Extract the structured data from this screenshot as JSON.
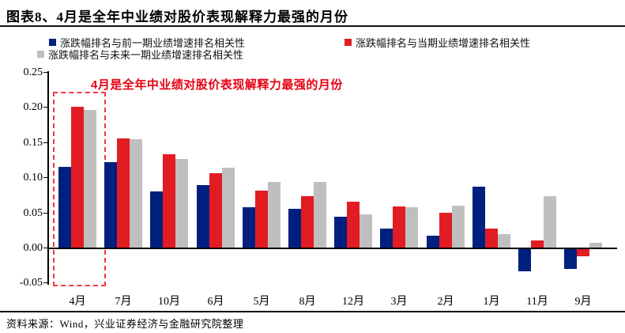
{
  "page": {
    "title": "图表8、4月是全年中业绩对股价表现解释力最强的月份",
    "source_note": "资料来源：Wind，兴业证券经济与金融研究院整理"
  },
  "colors": {
    "series_prev_blue": "#00207f",
    "series_curr_red": "#e11c23",
    "series_next_gray": "#bfbfbf",
    "annotation_red": "#e60012",
    "highlight_box_red": "#f5383e",
    "axis": "#000000"
  },
  "chart_data": {
    "type": "bar",
    "title": "图表8、4月是全年中业绩对股价表现解释力最强的月份",
    "xlabel": "",
    "ylabel": "",
    "categories": [
      "4月",
      "7月",
      "10月",
      "6月",
      "5月",
      "8月",
      "12月",
      "3月",
      "2月",
      "1月",
      "11月",
      "9月"
    ],
    "series": [
      {
        "name": "涨跌幅排名与前一期业绩增速排名相关性",
        "color": "#00207f",
        "values": [
          0.115,
          0.122,
          0.08,
          0.089,
          0.057,
          0.055,
          0.044,
          0.027,
          0.017,
          0.087,
          -0.031,
          -0.028
        ]
      },
      {
        "name": "涨跌幅排名与当期业绩增速排名相关性",
        "color": "#e11c23",
        "values": [
          0.2,
          0.155,
          0.133,
          0.106,
          0.081,
          0.073,
          0.065,
          0.059,
          0.049,
          0.027,
          0.01,
          -0.01
        ]
      },
      {
        "name": "涨跌幅排名与未来一期业绩增速排名相关性",
        "color": "#bfbfbf",
        "values": [
          0.196,
          0.154,
          0.126,
          0.114,
          0.094,
          0.093,
          0.047,
          0.057,
          0.06,
          0.019,
          0.073,
          0.007
        ]
      }
    ],
    "ylim": [
      -0.05,
      0.25
    ],
    "ytick_labels": [
      "0.25",
      "0.20",
      "0.15",
      "0.10",
      "0.05",
      "0.00",
      "-0.05"
    ],
    "grid": false,
    "legend_position": "top",
    "annotation": "4月是全年中业绩对股价表现解释力最强的月份",
    "highlighted_category": "4月"
  }
}
